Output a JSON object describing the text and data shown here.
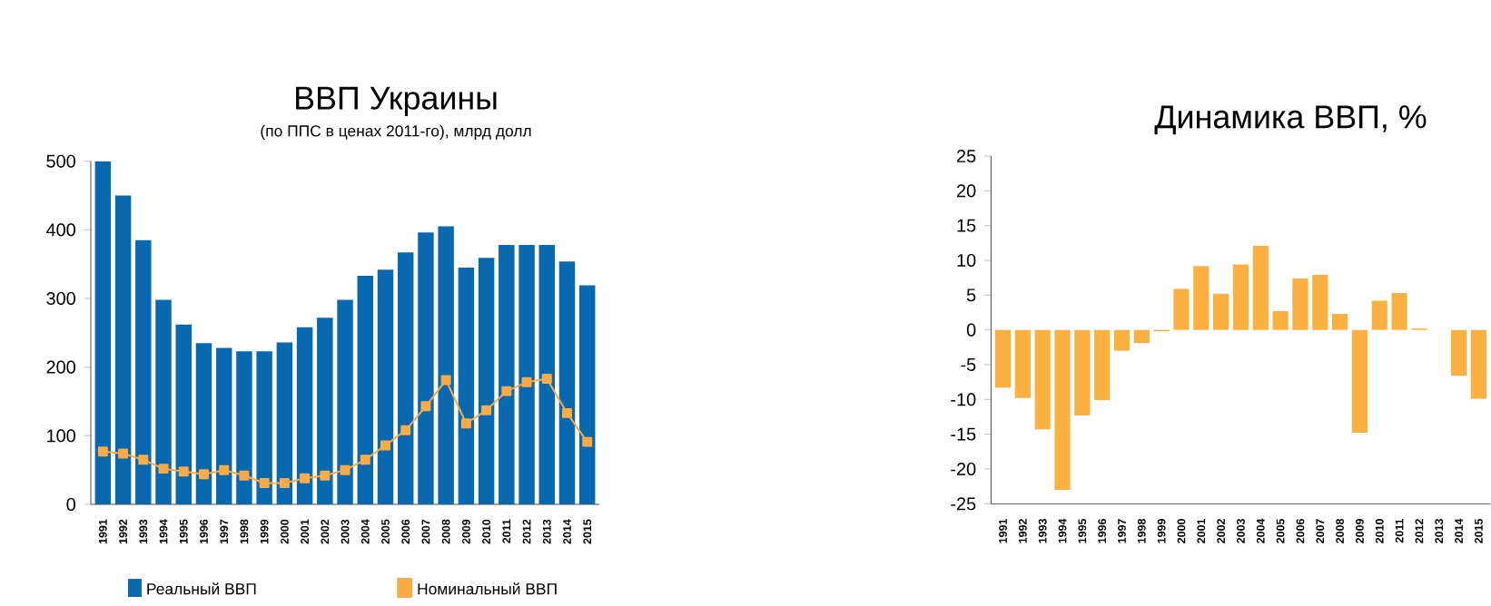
{
  "chart_data": [
    {
      "type": "bar",
      "title": "ВВП Украины",
      "subtitle": "(по ППС в ценах 2011-го), млрд долл",
      "categories": [
        "1991",
        "1992",
        "1993",
        "1994",
        "1995",
        "1996",
        "1997",
        "1998",
        "1999",
        "2000",
        "2001",
        "2002",
        "2003",
        "2004",
        "2005",
        "2006",
        "2007",
        "2008",
        "2009",
        "2010",
        "2011",
        "2012",
        "2013",
        "2014",
        "2015"
      ],
      "series": [
        {
          "name": "Реальный ВВП",
          "color": "#0868b0",
          "values": [
            500,
            450,
            385,
            298,
            262,
            235,
            228,
            223,
            223,
            236,
            258,
            272,
            298,
            333,
            342,
            367,
            396,
            405,
            345,
            359,
            378,
            378,
            378,
            354,
            319
          ]
        },
        {
          "name": "Номинальный ВВП",
          "type": "line",
          "color": "#fbab45",
          "values": [
            77,
            74,
            65,
            52,
            48,
            44,
            50,
            42,
            31,
            31,
            38,
            42,
            50,
            65,
            86,
            108,
            143,
            181,
            118,
            137,
            165,
            178,
            183,
            133,
            91
          ]
        }
      ],
      "marker": "square",
      "ylim": [
        0,
        500
      ],
      "yticks": [
        0,
        100,
        200,
        300,
        400,
        500
      ],
      "legend": "bottom"
    },
    {
      "type": "bar",
      "title": "Динамика ВВП, %",
      "categories": [
        "1991",
        "1992",
        "1993",
        "1994",
        "1995",
        "1996",
        "1997",
        "1998",
        "1999",
        "2000",
        "2001",
        "2002",
        "2003",
        "2004",
        "2005",
        "2006",
        "2007",
        "2008",
        "2009",
        "2010",
        "2011",
        "2012",
        "2013",
        "2014",
        "2015"
      ],
      "values": [
        -8.3,
        -9.8,
        -14.3,
        -23,
        -12.3,
        -10.1,
        -3,
        -1.9,
        -0.2,
        5.9,
        9.2,
        5.2,
        9.4,
        12.1,
        2.7,
        7.4,
        7.9,
        2.3,
        -14.8,
        4.2,
        5.3,
        0.2,
        0,
        -6.6,
        -9.9
      ],
      "color": "#fbb040",
      "ylim": [
        -25,
        25
      ],
      "yticks": [
        -25,
        -20,
        -15,
        -10,
        -5,
        0,
        5,
        10,
        15,
        20,
        25
      ]
    }
  ]
}
